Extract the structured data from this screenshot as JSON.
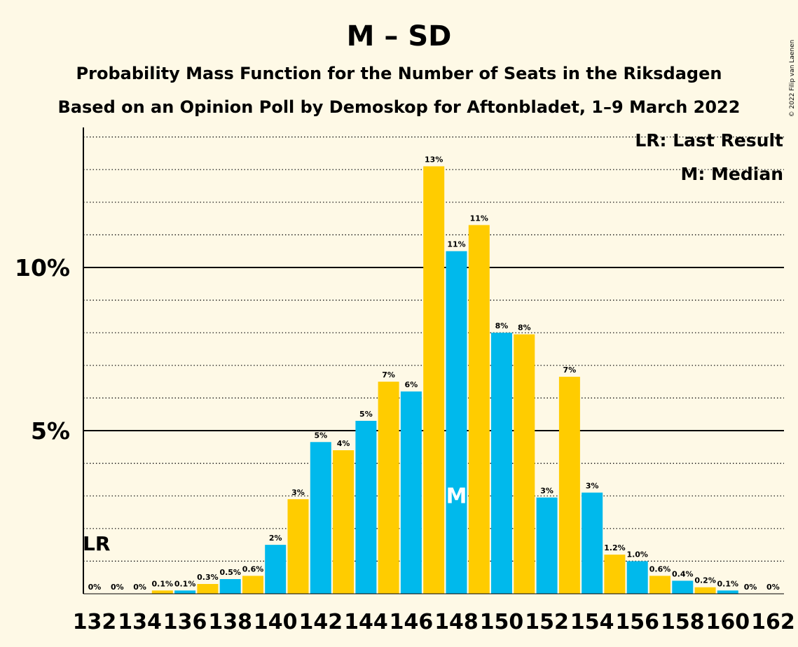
{
  "chart_data": {
    "type": "bar",
    "title": "M – SD",
    "subtitle_1": "Probability Mass Function for the Number of Seats in the Riksdagen",
    "subtitle_2": "Based on an Opinion Poll by Demoskop for Aftonbladet, 1–9 March 2022",
    "legend_lr": "LR: Last Result",
    "legend_median": "M: Median",
    "copyright": "© 2022 Filip van Laenen",
    "last_result_marker": "LR",
    "last_result_seat": 132,
    "median_marker": "M",
    "median_seat": 148,
    "x": [
      132,
      133,
      134,
      135,
      136,
      137,
      138,
      139,
      140,
      141,
      142,
      143,
      144,
      145,
      146,
      147,
      148,
      149,
      150,
      151,
      152,
      153,
      154,
      155,
      156,
      157,
      158,
      159,
      160,
      161,
      162
    ],
    "values": [
      0,
      0,
      0,
      0.1,
      0.1,
      0.3,
      0.45,
      0.55,
      1.5,
      2.9,
      4.65,
      4.4,
      5.3,
      6.5,
      6.2,
      13.1,
      10.5,
      11.3,
      8.0,
      7.95,
      2.95,
      6.65,
      3.1,
      1.2,
      1.0,
      0.55,
      0.4,
      0.2,
      0.1,
      0,
      0
    ],
    "labels": [
      "0%",
      "0%",
      "0%",
      "0.1%",
      "0.1%",
      "0.3%",
      "0.5%",
      "0.6%",
      "2%",
      "3%",
      "5%",
      "4%",
      "5%",
      "7%",
      "6%",
      "13%",
      "11%",
      "11%",
      "8%",
      "8%",
      "3%",
      "7%",
      "3%",
      "1.2%",
      "1.0%",
      "0.6%",
      "0.4%",
      "0.2%",
      "0.1%",
      "0%",
      "0%"
    ],
    "xtick_labels": [
      "132",
      "134",
      "136",
      "138",
      "140",
      "142",
      "144",
      "146",
      "148",
      "150",
      "152",
      "154",
      "156",
      "158",
      "160",
      "162"
    ],
    "ytick_values": [
      5,
      10
    ],
    "ytick_labels": [
      "5%",
      "10%"
    ],
    "ylim": [
      0,
      14.3
    ],
    "colors": {
      "even_seat": "#00b9ec",
      "odd_seat": "#ffcc00",
      "background": "#fef9e6"
    },
    "grid": "dotted every 1%, solid at 5% and 10%"
  }
}
